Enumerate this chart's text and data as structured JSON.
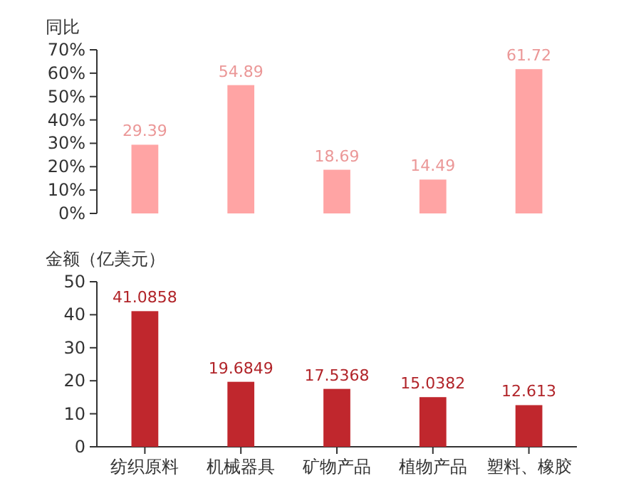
{
  "chart_data": [
    {
      "type": "bar",
      "ylabel": "同比",
      "categories": [
        null,
        null,
        null,
        null,
        null
      ],
      "values": [
        29.39,
        54.89,
        18.69,
        14.49,
        61.72
      ],
      "color": "#ffa4a4",
      "ylim": [
        0,
        70
      ],
      "yticks": [
        {
          "value": 0,
          "label": "0%"
        },
        {
          "value": 10,
          "label": "10%"
        },
        {
          "value": 20,
          "label": "20%"
        },
        {
          "value": 30,
          "label": "30%"
        },
        {
          "value": 40,
          "label": "40%"
        },
        {
          "value": 50,
          "label": "50%"
        },
        {
          "value": 60,
          "label": "60%"
        },
        {
          "value": 70,
          "label": "70%"
        }
      ],
      "data_labels": true,
      "tick_labels": "y"
    },
    {
      "type": "bar",
      "ylabel": "金额（亿美元）",
      "categories": [
        "纺织原料",
        "机械器具",
        "矿物产品",
        "植物产品",
        "塑料、橡胶"
      ],
      "values": [
        41.0858,
        19.6849,
        17.5368,
        15.0382,
        12.613
      ],
      "color": "#c0272d",
      "ylim": [
        0,
        50
      ],
      "yticks": [
        0,
        10,
        20,
        30,
        40,
        50
      ],
      "data_labels": true
    }
  ]
}
